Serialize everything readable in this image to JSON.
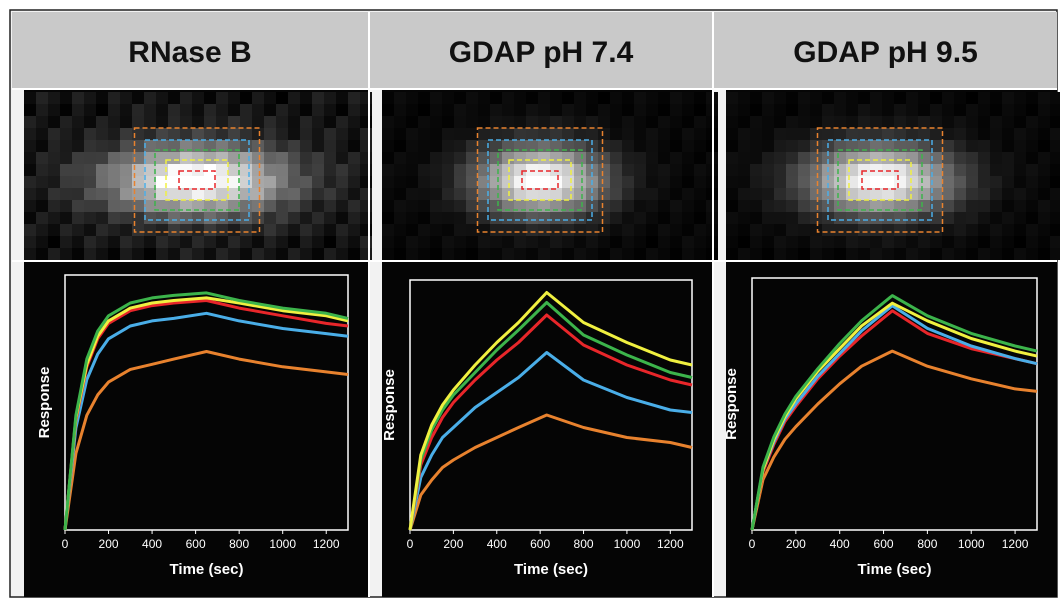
{
  "chart_data": [
    {
      "type": "line",
      "title": "RNase B",
      "x_label": "Time (sec)",
      "y_label": "Response",
      "x": [
        0,
        50,
        100,
        150,
        200,
        300,
        400,
        500,
        650,
        800,
        1000,
        1200,
        1300
      ],
      "xlim": [
        0,
        1300
      ],
      "xticks": [
        0,
        200,
        400,
        600,
        800,
        1000,
        1200
      ],
      "ylim": [
        0,
        100
      ],
      "series": [
        {
          "color": "#e8822e",
          "values": [
            0,
            30,
            45,
            53,
            58,
            63,
            65,
            67,
            70,
            67,
            64,
            62,
            61
          ]
        },
        {
          "color": "#4aaee8",
          "values": [
            0,
            40,
            59,
            69,
            75,
            80,
            82,
            83,
            85,
            82,
            79,
            77,
            76
          ]
        },
        {
          "color": "#e8262a",
          "values": [
            0,
            43,
            64,
            75,
            81,
            86,
            88,
            89,
            90,
            87,
            84,
            81,
            80
          ]
        },
        {
          "color": "#f0f040",
          "values": [
            0,
            44,
            65,
            76,
            82,
            87,
            89,
            90,
            91,
            89,
            86,
            84,
            82
          ]
        },
        {
          "color": "#3cb44b",
          "values": [
            0,
            45,
            67,
            78,
            84,
            89,
            91,
            92,
            93,
            90,
            87,
            85,
            83
          ]
        }
      ]
    },
    {
      "type": "line",
      "title": "GDAP pH 7.4",
      "x_label": "Time (sec)",
      "y_label": "Response",
      "x": [
        0,
        50,
        100,
        150,
        200,
        300,
        400,
        500,
        630,
        800,
        1000,
        1200,
        1300
      ],
      "xlim": [
        0,
        1300
      ],
      "xticks": [
        0,
        200,
        400,
        600,
        800,
        1000,
        1200
      ],
      "ylim": [
        0,
        100
      ],
      "series": [
        {
          "color": "#e8822e",
          "values": [
            0,
            14,
            20,
            25,
            28,
            33,
            37,
            41,
            46,
            41,
            37,
            35,
            33
          ]
        },
        {
          "color": "#4aaee8",
          "values": [
            0,
            21,
            30,
            37,
            41,
            49,
            55,
            61,
            71,
            60,
            53,
            48,
            47
          ]
        },
        {
          "color": "#e8262a",
          "values": [
            0,
            26,
            37,
            45,
            51,
            60,
            68,
            75,
            86,
            74,
            66,
            60,
            58
          ]
        },
        {
          "color": "#3cb44b",
          "values": [
            0,
            28,
            40,
            48,
            54,
            63,
            72,
            80,
            91,
            78,
            70,
            63,
            61
          ]
        },
        {
          "color": "#f0f040",
          "values": [
            0,
            30,
            42,
            50,
            56,
            66,
            75,
            83,
            95,
            83,
            75,
            68,
            66
          ]
        }
      ]
    },
    {
      "type": "line",
      "title": "GDAP pH 9.5",
      "x_label": "Time (sec)",
      "y_label": "Response",
      "x": [
        0,
        50,
        100,
        150,
        200,
        300,
        400,
        500,
        640,
        800,
        1000,
        1200,
        1300
      ],
      "xlim": [
        0,
        1300
      ],
      "xticks": [
        0,
        200,
        400,
        600,
        800,
        1000,
        1200
      ],
      "ylim": [
        0,
        100
      ],
      "series": [
        {
          "color": "#e8822e",
          "values": [
            0,
            20,
            29,
            36,
            41,
            50,
            58,
            65,
            71,
            65,
            60,
            56,
            55
          ]
        },
        {
          "color": "#e8262a",
          "values": [
            0,
            23,
            34,
            43,
            49,
            60,
            69,
            77,
            87,
            78,
            72,
            68,
            66
          ]
        },
        {
          "color": "#4aaee8",
          "values": [
            0,
            24,
            35,
            44,
            50,
            61,
            70,
            79,
            89,
            80,
            73,
            68,
            66
          ]
        },
        {
          "color": "#f0f040",
          "values": [
            0,
            24,
            36,
            45,
            52,
            63,
            72,
            81,
            90,
            83,
            76,
            71,
            69
          ]
        },
        {
          "color": "#3cb44b",
          "values": [
            0,
            25,
            37,
            46,
            53,
            64,
            74,
            83,
            93,
            85,
            78,
            73,
            71
          ]
        }
      ]
    }
  ]
}
